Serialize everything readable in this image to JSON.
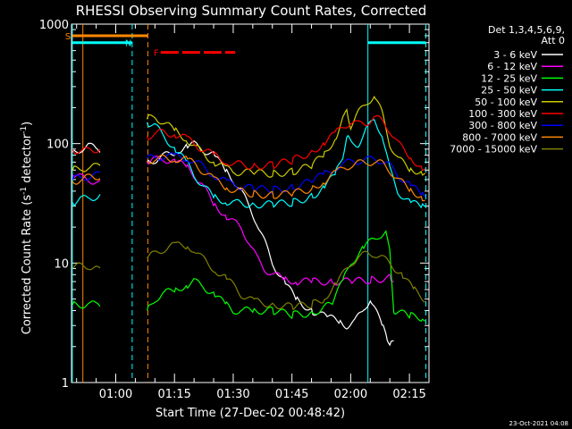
{
  "chart_data": {
    "type": "line",
    "title": "RHESSI Observing Summary Count Rates, Corrected",
    "xlabel": "Start Time (27-Dec-02 00:48:42)",
    "ylabel_main": "Corrected Count Rate (s",
    "ylabel_sup1": "-1",
    "ylabel_mid": " detector",
    "ylabel_sup2": "-1",
    "ylabel_end": ")",
    "yscale": "log",
    "ylim": [
      1,
      1000
    ],
    "xlim_min": [
      48.7,
      140
    ],
    "x_ticks": [
      {
        "v": 60,
        "label": "01:00"
      },
      {
        "v": 75,
        "label": "01:15"
      },
      {
        "v": 90,
        "label": "01:30"
      },
      {
        "v": 105,
        "label": "01:45"
      },
      {
        "v": 120,
        "label": "02:00"
      },
      {
        "v": 135,
        "label": "02:15"
      }
    ],
    "y_ticks": [
      {
        "v": 1,
        "label": "1"
      },
      {
        "v": 10,
        "label": "10"
      },
      {
        "v": 100,
        "label": "100"
      },
      {
        "v": 1000,
        "label": "1000"
      }
    ],
    "legend_header": [
      "Det 1,3,4,5,6,9,",
      "Att 0"
    ],
    "series": [
      {
        "name": "3 - 6 keV",
        "color": "#ffffff",
        "x": [
          49,
          51,
          53,
          55,
          56,
          68,
          70,
          72,
          75,
          78,
          80,
          82,
          85,
          88,
          90,
          92,
          94,
          96,
          98,
          100,
          103,
          106,
          110,
          114,
          117,
          119,
          121,
          123,
          125,
          128,
          129,
          130,
          131
        ],
        "y": [
          85,
          90,
          95,
          92,
          90,
          70,
          73,
          78,
          85,
          95,
          98,
          90,
          80,
          60,
          50,
          40,
          30,
          22,
          15,
          10,
          7,
          5,
          4,
          3.5,
          3.3,
          3,
          3.2,
          4,
          5,
          3,
          2.5,
          2.2,
          2.1
        ]
      },
      {
        "name": "6 - 12 keV",
        "color": "#ff00ff",
        "x": [
          49,
          51,
          53,
          55,
          56,
          68,
          70,
          72,
          75,
          78,
          80,
          82,
          85,
          88,
          90,
          92,
          94,
          96,
          98,
          100,
          103,
          106,
          110,
          115,
          120,
          125,
          130,
          131
        ],
        "y": [
          55,
          52,
          50,
          48,
          47,
          70,
          73,
          75,
          70,
          65,
          55,
          45,
          32,
          25,
          22,
          20,
          15,
          11,
          9,
          8,
          7.5,
          7,
          7,
          7,
          7,
          7.2,
          7.5,
          7.5
        ]
      },
      {
        "name": "12 - 25 keV",
        "color": "#00ff00",
        "x": [
          49,
          51,
          53,
          55,
          56,
          68,
          70,
          72,
          75,
          78,
          80,
          82,
          85,
          88,
          90,
          92,
          95,
          100,
          105,
          110,
          115,
          118,
          120,
          123,
          125,
          127,
          129,
          130,
          131,
          135,
          138,
          139
        ],
        "y": [
          4.5,
          4.5,
          4.5,
          4.5,
          4.5,
          4,
          5,
          5.5,
          6,
          6.5,
          7,
          6.5,
          5.5,
          4.5,
          4,
          4,
          4,
          4,
          3.7,
          3.8,
          4.5,
          7,
          10,
          13,
          15,
          17,
          18,
          12,
          4,
          3.6,
          3.5,
          3.5
        ]
      },
      {
        "name": "25 - 50 keV",
        "color": "#00ffff",
        "x": [
          49,
          51,
          53,
          55,
          56,
          68,
          70,
          72,
          75,
          78,
          80,
          82,
          85,
          88,
          90,
          95,
          100,
          105,
          110,
          113,
          116,
          118,
          119,
          120,
          122,
          124,
          126,
          128,
          130,
          132,
          135,
          138,
          139
        ],
        "y": [
          32,
          34,
          35,
          36,
          37,
          150,
          140,
          120,
          90,
          70,
          55,
          45,
          36,
          33,
          32,
          31,
          31,
          32,
          36,
          42,
          55,
          80,
          120,
          100,
          100,
          130,
          160,
          120,
          60,
          40,
          32,
          30,
          30
        ]
      },
      {
        "name": "50 - 100 keV",
        "color": "#cccc00",
        "x": [
          49,
          51,
          53,
          55,
          56,
          68,
          70,
          72,
          75,
          78,
          80,
          82,
          85,
          88,
          90,
          95,
          100,
          105,
          110,
          113,
          116,
          118,
          119,
          120,
          122,
          124,
          126,
          128,
          130,
          132,
          135,
          138,
          139
        ],
        "y": [
          60,
          62,
          63,
          64,
          65,
          160,
          170,
          150,
          130,
          110,
          95,
          85,
          70,
          62,
          58,
          57,
          56,
          58,
          65,
          80,
          110,
          160,
          180,
          140,
          180,
          220,
          250,
          180,
          100,
          75,
          62,
          58,
          57
        ]
      },
      {
        "name": "100 - 300 keV",
        "color": "#ff0000",
        "x": [
          49,
          51,
          53,
          55,
          56,
          68,
          70,
          72,
          75,
          78,
          80,
          82,
          85,
          88,
          90,
          95,
          100,
          105,
          110,
          113,
          116,
          118,
          120,
          122,
          124,
          126,
          128,
          130,
          132,
          135,
          138,
          139
        ],
        "y": [
          90,
          85,
          88,
          90,
          92,
          115,
          120,
          125,
          120,
          110,
          100,
          90,
          80,
          72,
          68,
          65,
          66,
          72,
          85,
          100,
          120,
          140,
          150,
          145,
          150,
          165,
          155,
          130,
          100,
          80,
          62,
          60
        ]
      },
      {
        "name": "300 - 800 keV",
        "color": "#0000ff",
        "x": [
          49,
          51,
          53,
          55,
          56,
          68,
          70,
          72,
          75,
          78,
          80,
          82,
          85,
          88,
          90,
          95,
          100,
          105,
          110,
          113,
          116,
          118,
          120,
          122,
          124,
          126,
          128,
          130,
          132,
          135,
          138,
          139
        ],
        "y": [
          50,
          52,
          53,
          54,
          55,
          75,
          76,
          78,
          78,
          76,
          72,
          65,
          55,
          48,
          45,
          42,
          41,
          43,
          48,
          55,
          63,
          68,
          70,
          72,
          73,
          74,
          72,
          65,
          55,
          45,
          38,
          36
        ]
      },
      {
        "name": "800 - 7000 keV",
        "color": "#ff8800",
        "x": [
          49,
          51,
          53,
          55,
          56,
          68,
          70,
          72,
          75,
          78,
          80,
          82,
          85,
          88,
          90,
          95,
          100,
          105,
          110,
          113,
          116,
          118,
          120,
          122,
          124,
          126,
          128,
          130,
          132,
          135,
          138,
          139
        ],
        "y": [
          48,
          50,
          52,
          53,
          54,
          72,
          74,
          75,
          75,
          73,
          68,
          60,
          50,
          44,
          41,
          38,
          37,
          38,
          42,
          48,
          56,
          62,
          66,
          68,
          70,
          70,
          68,
          60,
          50,
          42,
          36,
          34
        ]
      },
      {
        "name": "7000 - 15000 keV",
        "color": "#808000",
        "x": [
          49,
          51,
          53,
          55,
          56,
          68,
          70,
          72,
          75,
          78,
          80,
          82,
          85,
          88,
          90,
          92,
          95,
          100,
          105,
          110,
          113,
          116,
          118,
          120,
          122,
          124,
          126,
          128,
          130,
          133,
          136,
          139
        ],
        "y": [
          9,
          9.5,
          9.5,
          9,
          8.5,
          11,
          12,
          13,
          14,
          14,
          13,
          11,
          9,
          7.5,
          6.5,
          5.5,
          4.8,
          4.5,
          4.3,
          4.5,
          5,
          6.5,
          8,
          10,
          11,
          12,
          12,
          11,
          10,
          8,
          6,
          5
        ]
      }
    ],
    "vlines": [
      {
        "x": 48.9,
        "color": "#00ffff",
        "style": "solid"
      },
      {
        "x": 51.6,
        "color": "#ff8800",
        "style": "solid"
      },
      {
        "x": 64.2,
        "color": "#00ffff",
        "style": "dashed"
      },
      {
        "x": 68.2,
        "color": "#ff8800",
        "style": "dashed"
      },
      {
        "x": 124.4,
        "color": "#00ffff",
        "style": "solid"
      },
      {
        "x": 139.2,
        "color": "#00ffff",
        "style": "dashed"
      }
    ],
    "flag_bars": [
      {
        "x0": 48.9,
        "x1": 68.2,
        "y": 800,
        "color": "#ff8800",
        "label": "S"
      },
      {
        "x0": 48.9,
        "x1": 64.2,
        "y": 700,
        "color": "#00ffff",
        "label": "N"
      },
      {
        "x0": 71.5,
        "x1": 90.5,
        "y": 580,
        "color": "#ff0000",
        "label": "F",
        "dashes": true
      },
      {
        "x0": 124.4,
        "x1": 139.2,
        "y": 700,
        "color": "#00ffff",
        "label": ""
      }
    ]
  },
  "footer_stamp": "23-Oct-2021 04:08"
}
